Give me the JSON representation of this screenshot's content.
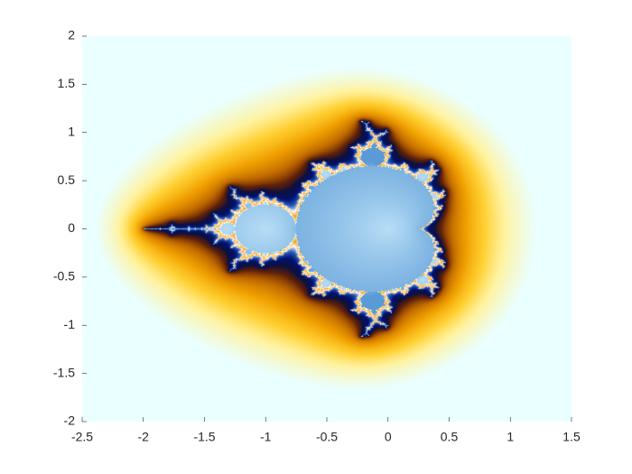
{
  "chart_data": {
    "type": "image",
    "xlim": [
      -2.5,
      1.5
    ],
    "ylim": [
      -2,
      2
    ],
    "xticks": [
      -2.5,
      -2,
      -1.5,
      -1,
      -0.5,
      0,
      0.5,
      1,
      1.5
    ],
    "yticks": [
      -2,
      -1.5,
      -1,
      -0.5,
      0,
      0.5,
      1,
      1.5,
      2
    ]
  }
}
